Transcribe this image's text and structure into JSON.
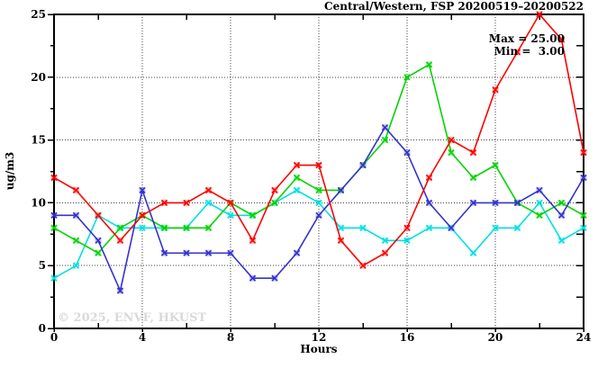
{
  "header": {
    "title": "Central/Western, FSP 20200519–20200522"
  },
  "annotations": {
    "max_label": "Max = 25.00",
    "min_label": "Min =  3.00",
    "watermark": "© 2025, ENVF, HKUST"
  },
  "chart_data": {
    "type": "line",
    "title": "Central/Western, FSP 20200519–20200522",
    "xlabel": "Hours",
    "ylabel": "ug/m3",
    "xlim": [
      0,
      24
    ],
    "ylim": [
      0,
      25
    ],
    "xticks": [
      0,
      4,
      8,
      12,
      16,
      20,
      24
    ],
    "yticks": [
      0,
      5,
      10,
      15,
      20,
      25
    ],
    "x_minor_ticks": [
      2,
      6,
      10,
      14,
      18,
      22
    ],
    "y_minor_ticks": [
      2.5,
      7.5,
      12.5,
      17.5,
      22.5
    ],
    "grid": "dotted lines at major ticks",
    "legend": "none",
    "marker": "x-cross with translucent square halo",
    "x": [
      0,
      1,
      2,
      3,
      4,
      5,
      6,
      7,
      8,
      9,
      10,
      11,
      12,
      13,
      14,
      15,
      16,
      17,
      18,
      19,
      20,
      21,
      22,
      23,
      24
    ],
    "series": [
      {
        "name": "series-cyan",
        "color": "#00e0e0",
        "values": [
          4,
          5,
          9,
          8,
          8,
          8,
          8,
          10,
          9,
          9,
          10,
          11,
          10,
          8,
          8,
          7,
          7,
          8,
          8,
          6,
          8,
          8,
          10,
          7,
          8
        ]
      },
      {
        "name": "series-green",
        "color": "#00d400",
        "values": [
          8,
          7,
          6,
          8,
          9,
          8,
          8,
          8,
          10,
          9,
          10,
          12,
          11,
          11,
          13,
          15,
          20,
          21,
          14,
          12,
          13,
          10,
          9,
          10,
          9
        ]
      },
      {
        "name": "series-blue",
        "color": "#3333cc",
        "values": [
          9,
          9,
          7,
          3,
          11,
          6,
          6,
          6,
          6,
          4,
          4,
          6,
          9,
          11,
          13,
          16,
          14,
          10,
          8,
          10,
          10,
          10,
          11,
          9,
          12
        ]
      },
      {
        "name": "series-red",
        "color": "#ff0000",
        "values": [
          12,
          11,
          9,
          7,
          9,
          10,
          10,
          11,
          10,
          7,
          11,
          13,
          13,
          7,
          5,
          6,
          8,
          12,
          15,
          14,
          19,
          22,
          25,
          23,
          14
        ]
      }
    ],
    "stats": {
      "max": 25.0,
      "min": 3.0
    },
    "colors": {
      "frame": "#000000",
      "grid": "#444444",
      "background": "#ffffff",
      "watermark_gray": "#d9d9d9"
    }
  }
}
